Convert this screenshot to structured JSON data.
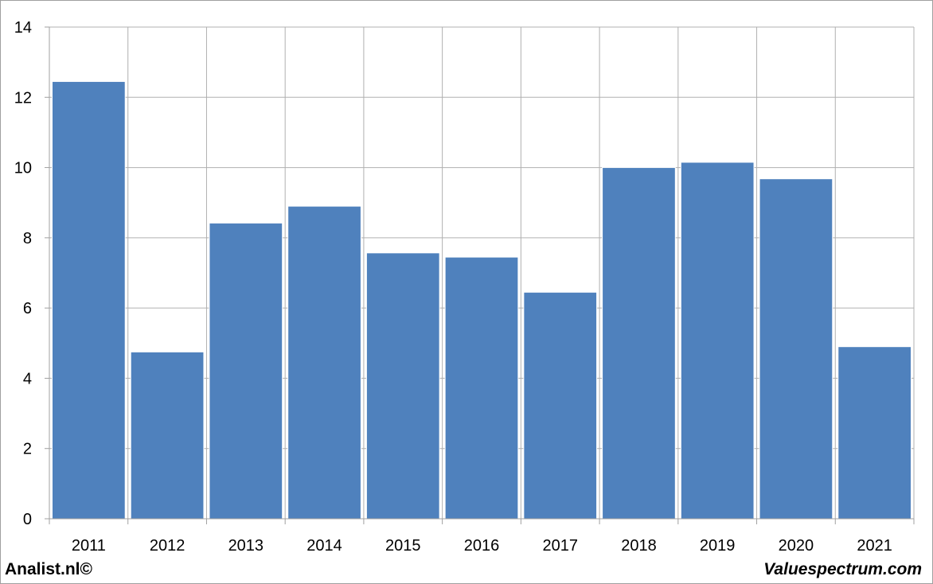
{
  "chart_data": {
    "type": "bar",
    "categories": [
      "2011",
      "2012",
      "2013",
      "2014",
      "2015",
      "2016",
      "2017",
      "2018",
      "2019",
      "2020",
      "2021"
    ],
    "values": [
      12.45,
      4.75,
      8.42,
      8.9,
      7.57,
      7.45,
      6.45,
      10.0,
      10.15,
      9.68,
      4.9
    ],
    "title": "",
    "xlabel": "",
    "ylabel": "",
    "ylim": [
      0,
      14
    ],
    "yticks": [
      "0",
      "2",
      "4",
      "6",
      "8",
      "10",
      "12",
      "14"
    ],
    "grid": true,
    "bar_color": "#4f81bd",
    "grid_color": "#b0b0b0",
    "frame_color": "#a0a0a0"
  },
  "footer": {
    "left_text": "Analist.nl©",
    "right_text": "Valuespectrum.com"
  }
}
